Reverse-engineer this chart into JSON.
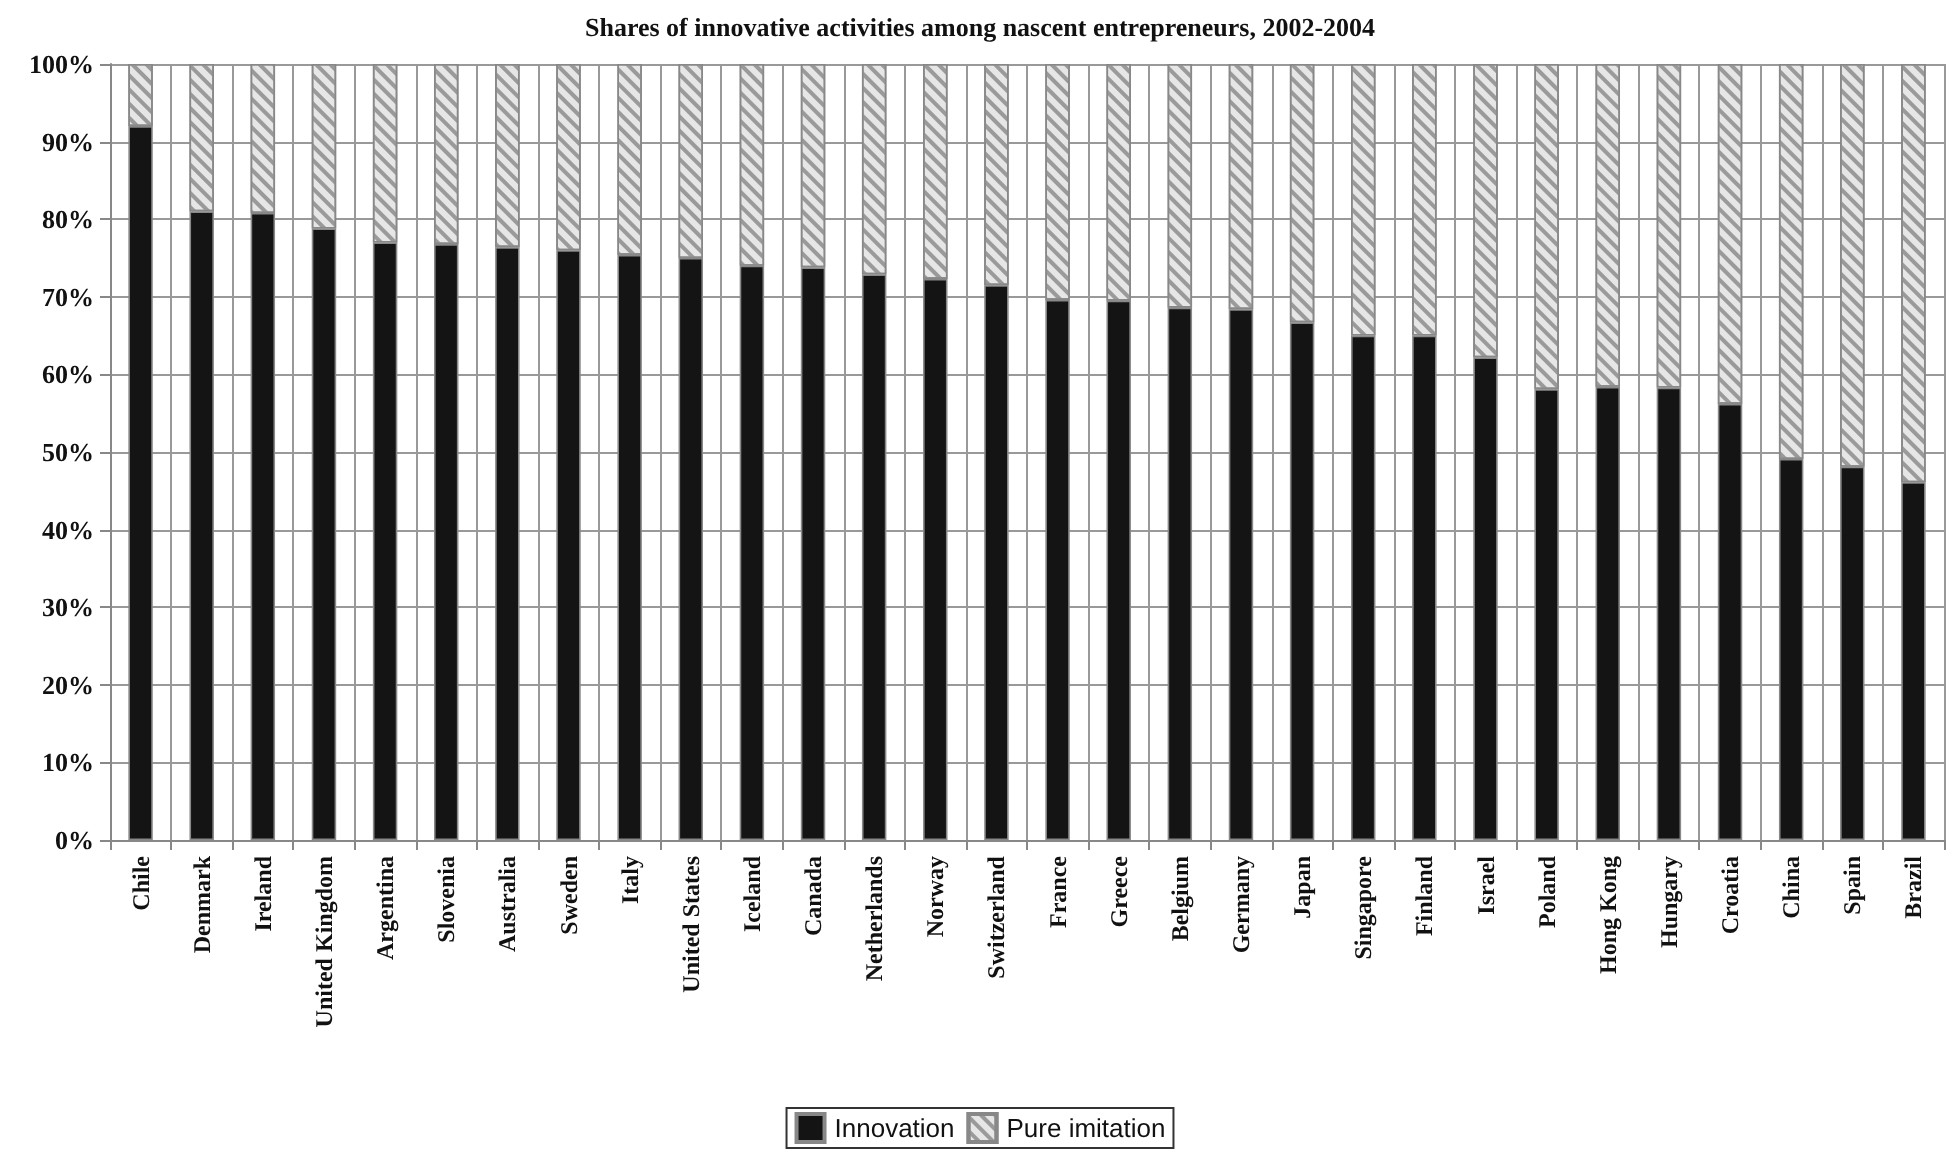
{
  "chart_data": {
    "type": "bar",
    "title": "Shares of innovative activities among nascent entrepreneurs, 2002-2004",
    "categories": [
      "Chile",
      "Denmark",
      "Ireland",
      "United Kingdom",
      "Argentina",
      "Slovenia",
      "Australia",
      "Sweden",
      "Italy",
      "United States",
      "Iceland",
      "Canada",
      "Netherlands",
      "Norway",
      "Switzerland",
      "France",
      "Greece",
      "Belgium",
      "Germany",
      "Japan",
      "Singapore",
      "Finland",
      "Israel",
      "Poland",
      "Hong Kong",
      "Hungary",
      "Croatia",
      "China",
      "Spain",
      "Brazil"
    ],
    "series": [
      {
        "name": "Innovation",
        "color": "#141414",
        "values": [
          92,
          81,
          80.8,
          78.8,
          77,
          76.8,
          76.4,
          76,
          75.4,
          75,
          74,
          73.8,
          72.9,
          72.3,
          71.5,
          69.6,
          69.5,
          68.6,
          68.4,
          66.7,
          65,
          65,
          62.2,
          58.1,
          58.4,
          58.3,
          56.2,
          49.1,
          48.1,
          46.1
        ]
      },
      {
        "name": "Pure imitation",
        "color": "#e6e6e6",
        "values": [
          8,
          19,
          19.2,
          21.2,
          23,
          23.2,
          23.6,
          24,
          24.6,
          25,
          26,
          26.2,
          27.1,
          27.7,
          28.5,
          30.4,
          30.5,
          31.4,
          31.6,
          33.3,
          35,
          35,
          37.8,
          41.9,
          41.6,
          41.7,
          43.8,
          50.9,
          51.9,
          53.9
        ]
      }
    ],
    "stacked": true,
    "ylim": [
      0,
      100
    ],
    "yticks": [
      {
        "value": 0,
        "label": "0%"
      },
      {
        "value": 10,
        "label": "10%"
      },
      {
        "value": 20,
        "label": "20%"
      },
      {
        "value": 30,
        "label": "30%"
      },
      {
        "value": 40,
        "label": "40%"
      },
      {
        "value": 50,
        "label": "50%"
      },
      {
        "value": 60,
        "label": "60%"
      },
      {
        "value": 70,
        "label": "70%"
      },
      {
        "value": 80,
        "label": "80%"
      },
      {
        "value": 90,
        "label": "90%"
      },
      {
        "value": 100,
        "label": "100%"
      }
    ],
    "grid": true,
    "legend": "bottom"
  }
}
